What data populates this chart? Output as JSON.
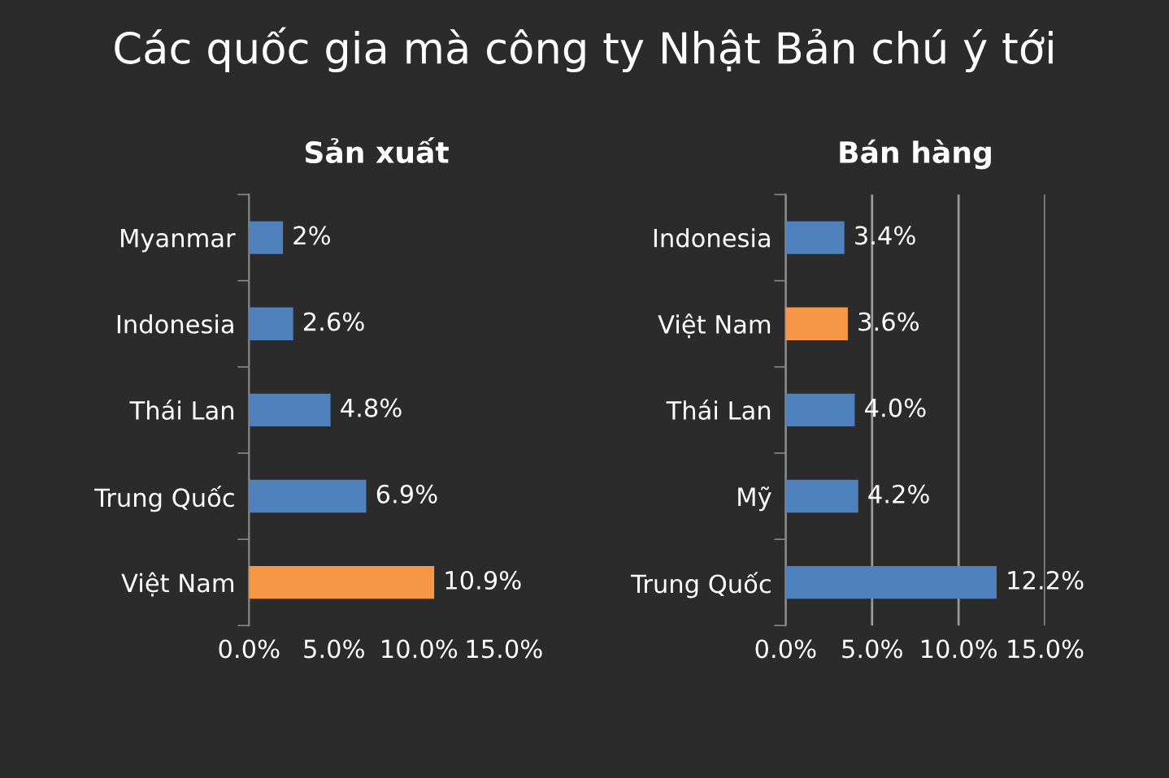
{
  "chart_data": [
    {
      "type": "bar",
      "orientation": "horizontal",
      "title": "Các quốc gia mà công ty Nhật Bản chú ý tới",
      "subtitle": "Sản xuất",
      "categories": [
        "Myanmar",
        "Indonesia",
        "Thái Lan",
        "Trung Quốc",
        "Việt Nam"
      ],
      "values": [
        2,
        2.6,
        4.8,
        6.9,
        10.9
      ],
      "value_labels": [
        "2%",
        "2.6%",
        "4.8%",
        "6.9%",
        "10.9%"
      ],
      "colors": [
        "#4f81bd",
        "#4f81bd",
        "#4f81bd",
        "#4f81bd",
        "#f79646"
      ],
      "xlim": [
        0,
        15
      ],
      "xticks": [
        {
          "value": 0,
          "label": "0.0%"
        },
        {
          "value": 5,
          "label": "5.0%"
        },
        {
          "value": 10,
          "label": "10.0%"
        },
        {
          "value": 15,
          "label": "15.0%"
        }
      ],
      "grid": false,
      "legend": false
    },
    {
      "type": "bar",
      "orientation": "horizontal",
      "subtitle": "Bán hàng",
      "categories": [
        "Indonesia",
        "Việt Nam",
        "Thái Lan",
        "Mỹ",
        "Trung Quốc"
      ],
      "values": [
        3.4,
        3.6,
        4.0,
        4.2,
        12.2
      ],
      "value_labels": [
        "3.4%",
        "3.6%",
        "4.0%",
        "4.2%",
        "12.2%"
      ],
      "colors": [
        "#4f81bd",
        "#f79646",
        "#4f81bd",
        "#4f81bd",
        "#4f81bd"
      ],
      "xlim": [
        0,
        15
      ],
      "xticks": [
        {
          "value": 0,
          "label": "0.0%"
        },
        {
          "value": 5,
          "label": "5.0%"
        },
        {
          "value": 10,
          "label": "10.0%"
        },
        {
          "value": 15,
          "label": "15.0%"
        }
      ],
      "grid": "x",
      "legend": false
    }
  ]
}
